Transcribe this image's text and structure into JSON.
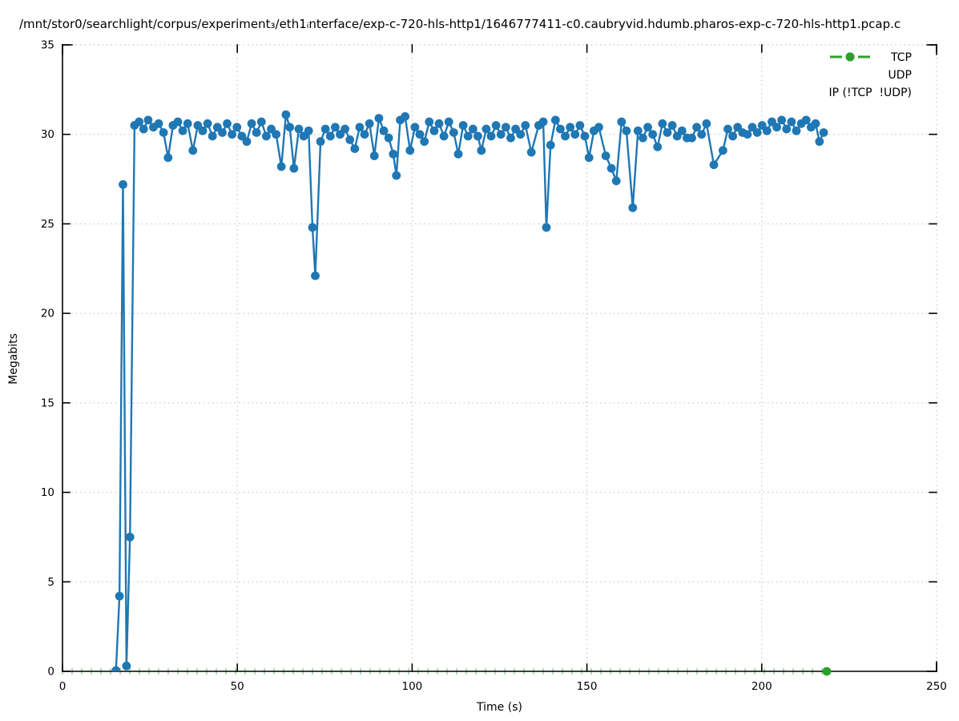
{
  "chart_data": {
    "type": "line",
    "title": "/mnt/stor0/searchlight/corpus/experiment₃/eth1ᵢnterface/exp-c-720-hls-http1/1646777411-c0.caubryvid.hdumb.pharos-exp-c-720-hls-http1.pcap.c",
    "xlabel": "Time (s)",
    "ylabel": "Megabits",
    "xlim": [
      0,
      250
    ],
    "ylim": [
      0,
      35
    ],
    "xticks": [
      0,
      50,
      100,
      150,
      200,
      250
    ],
    "yticks": [
      0,
      5,
      10,
      15,
      20,
      25,
      30,
      35
    ],
    "grid": true,
    "legend_position": "top-right-inside",
    "series": [
      {
        "name": "TCP",
        "color": "#1f77b4",
        "marker": "circle",
        "points": [
          [
            15.3,
            0.05
          ],
          [
            16.3,
            4.2
          ],
          [
            17.3,
            27.2
          ],
          [
            18.3,
            0.3
          ],
          [
            19.3,
            7.5
          ],
          [
            20.6,
            30.5
          ],
          [
            21.9,
            30.7
          ],
          [
            23.2,
            30.3
          ],
          [
            24.5,
            30.8
          ],
          [
            26.0,
            30.4
          ],
          [
            27.5,
            30.6
          ],
          [
            28.9,
            30.1
          ],
          [
            30.2,
            28.7
          ],
          [
            31.6,
            30.5
          ],
          [
            33.0,
            30.7
          ],
          [
            34.4,
            30.2
          ],
          [
            35.8,
            30.6
          ],
          [
            37.3,
            29.1
          ],
          [
            38.7,
            30.5
          ],
          [
            40.1,
            30.2
          ],
          [
            41.5,
            30.6
          ],
          [
            42.9,
            29.9
          ],
          [
            44.3,
            30.4
          ],
          [
            45.7,
            30.1
          ],
          [
            47.1,
            30.6
          ],
          [
            48.5,
            30.0
          ],
          [
            49.9,
            30.4
          ],
          [
            51.3,
            29.9
          ],
          [
            52.7,
            29.6
          ],
          [
            54.1,
            30.6
          ],
          [
            55.5,
            30.1
          ],
          [
            56.9,
            30.7
          ],
          [
            58.3,
            29.9
          ],
          [
            59.7,
            30.3
          ],
          [
            61.1,
            30.0
          ],
          [
            62.6,
            28.2
          ],
          [
            63.9,
            31.1
          ],
          [
            65.0,
            30.4
          ],
          [
            66.2,
            28.1
          ],
          [
            67.6,
            30.3
          ],
          [
            69.0,
            29.9
          ],
          [
            70.4,
            30.2
          ],
          [
            71.5,
            24.8
          ],
          [
            72.3,
            22.1
          ],
          [
            73.8,
            29.6
          ],
          [
            75.2,
            30.3
          ],
          [
            76.6,
            29.9
          ],
          [
            78.0,
            30.4
          ],
          [
            79.4,
            30.0
          ],
          [
            80.8,
            30.3
          ],
          [
            82.2,
            29.7
          ],
          [
            83.6,
            29.2
          ],
          [
            85.0,
            30.4
          ],
          [
            86.4,
            30.0
          ],
          [
            87.8,
            30.6
          ],
          [
            89.2,
            28.8
          ],
          [
            90.5,
            30.9
          ],
          [
            91.9,
            30.2
          ],
          [
            93.3,
            29.8
          ],
          [
            94.6,
            28.9
          ],
          [
            95.5,
            27.7
          ],
          [
            96.6,
            30.8
          ],
          [
            98.0,
            31.0
          ],
          [
            99.4,
            29.1
          ],
          [
            100.8,
            30.4
          ],
          [
            102.2,
            30.0
          ],
          [
            103.5,
            29.6
          ],
          [
            104.9,
            30.7
          ],
          [
            106.3,
            30.2
          ],
          [
            107.7,
            30.6
          ],
          [
            109.1,
            29.9
          ],
          [
            110.5,
            30.7
          ],
          [
            111.9,
            30.1
          ],
          [
            113.2,
            28.9
          ],
          [
            114.6,
            30.5
          ],
          [
            116.0,
            29.9
          ],
          [
            117.4,
            30.3
          ],
          [
            118.8,
            29.9
          ],
          [
            119.8,
            29.1
          ],
          [
            121.2,
            30.3
          ],
          [
            122.6,
            29.9
          ],
          [
            124.0,
            30.5
          ],
          [
            125.4,
            30.0
          ],
          [
            126.8,
            30.4
          ],
          [
            128.2,
            29.8
          ],
          [
            129.6,
            30.3
          ],
          [
            131.0,
            30.0
          ],
          [
            132.4,
            30.5
          ],
          [
            134.1,
            29.0
          ],
          [
            136.2,
            30.5
          ],
          [
            137.5,
            30.7
          ],
          [
            138.4,
            24.8
          ],
          [
            139.6,
            29.4
          ],
          [
            141.0,
            30.8
          ],
          [
            142.4,
            30.3
          ],
          [
            143.8,
            29.9
          ],
          [
            145.2,
            30.4
          ],
          [
            146.6,
            30.0
          ],
          [
            148.0,
            30.5
          ],
          [
            149.4,
            29.9
          ],
          [
            150.6,
            28.7
          ],
          [
            152.0,
            30.2
          ],
          [
            153.4,
            30.4
          ],
          [
            155.4,
            28.8
          ],
          [
            157.0,
            28.1
          ],
          [
            158.4,
            27.4
          ],
          [
            159.9,
            30.7
          ],
          [
            161.3,
            30.2
          ],
          [
            163.1,
            25.9
          ],
          [
            164.6,
            30.2
          ],
          [
            166.0,
            29.8
          ],
          [
            167.4,
            30.4
          ],
          [
            168.8,
            30.0
          ],
          [
            170.2,
            29.3
          ],
          [
            171.6,
            30.6
          ],
          [
            173.0,
            30.1
          ],
          [
            174.4,
            30.5
          ],
          [
            175.8,
            29.9
          ],
          [
            177.2,
            30.2
          ],
          [
            178.6,
            29.8
          ],
          [
            180.0,
            29.8
          ],
          [
            181.4,
            30.4
          ],
          [
            182.8,
            30.0
          ],
          [
            184.2,
            30.6
          ],
          [
            186.3,
            28.3
          ],
          [
            188.9,
            29.1
          ],
          [
            190.3,
            30.3
          ],
          [
            191.7,
            29.9
          ],
          [
            193.1,
            30.4
          ],
          [
            194.5,
            30.1
          ],
          [
            195.9,
            30.0
          ],
          [
            197.3,
            30.4
          ],
          [
            198.7,
            30.1
          ],
          [
            200.1,
            30.5
          ],
          [
            201.5,
            30.2
          ],
          [
            202.9,
            30.7
          ],
          [
            204.3,
            30.4
          ],
          [
            205.7,
            30.8
          ],
          [
            207.1,
            30.3
          ],
          [
            208.5,
            30.7
          ],
          [
            209.9,
            30.2
          ],
          [
            211.3,
            30.6
          ],
          [
            212.7,
            30.8
          ],
          [
            214.1,
            30.4
          ],
          [
            215.4,
            30.6
          ],
          [
            216.5,
            29.6
          ],
          [
            217.7,
            30.1
          ]
        ]
      },
      {
        "name": "UDP",
        "color": "#ff7f0e",
        "marker": "circle",
        "points": []
      },
      {
        "name": "IP (!TCP  !UDP)",
        "color": "#2ca02c",
        "marker": "circle",
        "points": [
          [
            218.6,
            0
          ]
        ],
        "zero_baseline": {
          "from": 0,
          "to": 218.6,
          "mark_step": 2.75,
          "value": 0
        }
      }
    ]
  }
}
